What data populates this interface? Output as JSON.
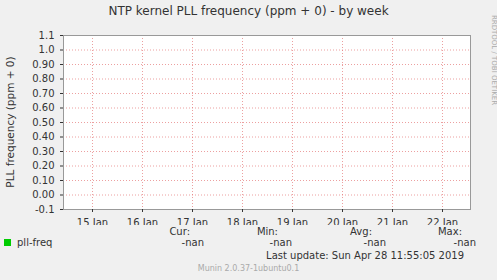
{
  "chart_data": {
    "type": "line",
    "title": "NTP kernel PLL frequency (ppm + 0) - by week",
    "ylabel": "PLL frequency (ppm + 0)",
    "categories": [
      "15 Jan",
      "16 Jan",
      "17 Jan",
      "18 Jan",
      "19 Jan",
      "20 Jan",
      "21 Jan",
      "22 Jan"
    ],
    "series": [
      {
        "name": "pll-freq",
        "color": "#00cc00",
        "values": [
          null,
          null,
          null,
          null,
          null,
          null,
          null,
          null
        ]
      }
    ],
    "ylim": [
      -0.1,
      1.1
    ],
    "yticks": [
      -0.1,
      {
        "value": 0,
        "label": "0.00"
      },
      {
        "value": 0.1,
        "label": "0.10"
      },
      {
        "value": 0.2,
        "label": "0.20"
      },
      {
        "value": 0.3,
        "label": "0.30"
      },
      {
        "value": 0.4,
        "label": "0.40"
      },
      {
        "value": 0.5,
        "label": "0.50"
      },
      {
        "value": 0.6,
        "label": "0.60"
      },
      {
        "value": 0.7,
        "label": "0.70"
      },
      {
        "value": 0.8,
        "label": "0.80"
      },
      {
        "value": 0.9,
        "label": "0.90"
      },
      {
        "value": 1,
        "label": "1.0"
      },
      1.1
    ],
    "grid": true,
    "summary": {
      "headers": [
        "Cur:",
        "Min:",
        "Avg:",
        "Max:"
      ],
      "values": [
        "-nan",
        "-nan",
        "-nan",
        "-nan"
      ]
    },
    "footer": "Last update: Sun Apr 28 11:55:05 2019",
    "credit": "Munin 2.0.37-1ubuntu0.1",
    "side_label": "RRDTOOL / TOBI OETIKER"
  }
}
